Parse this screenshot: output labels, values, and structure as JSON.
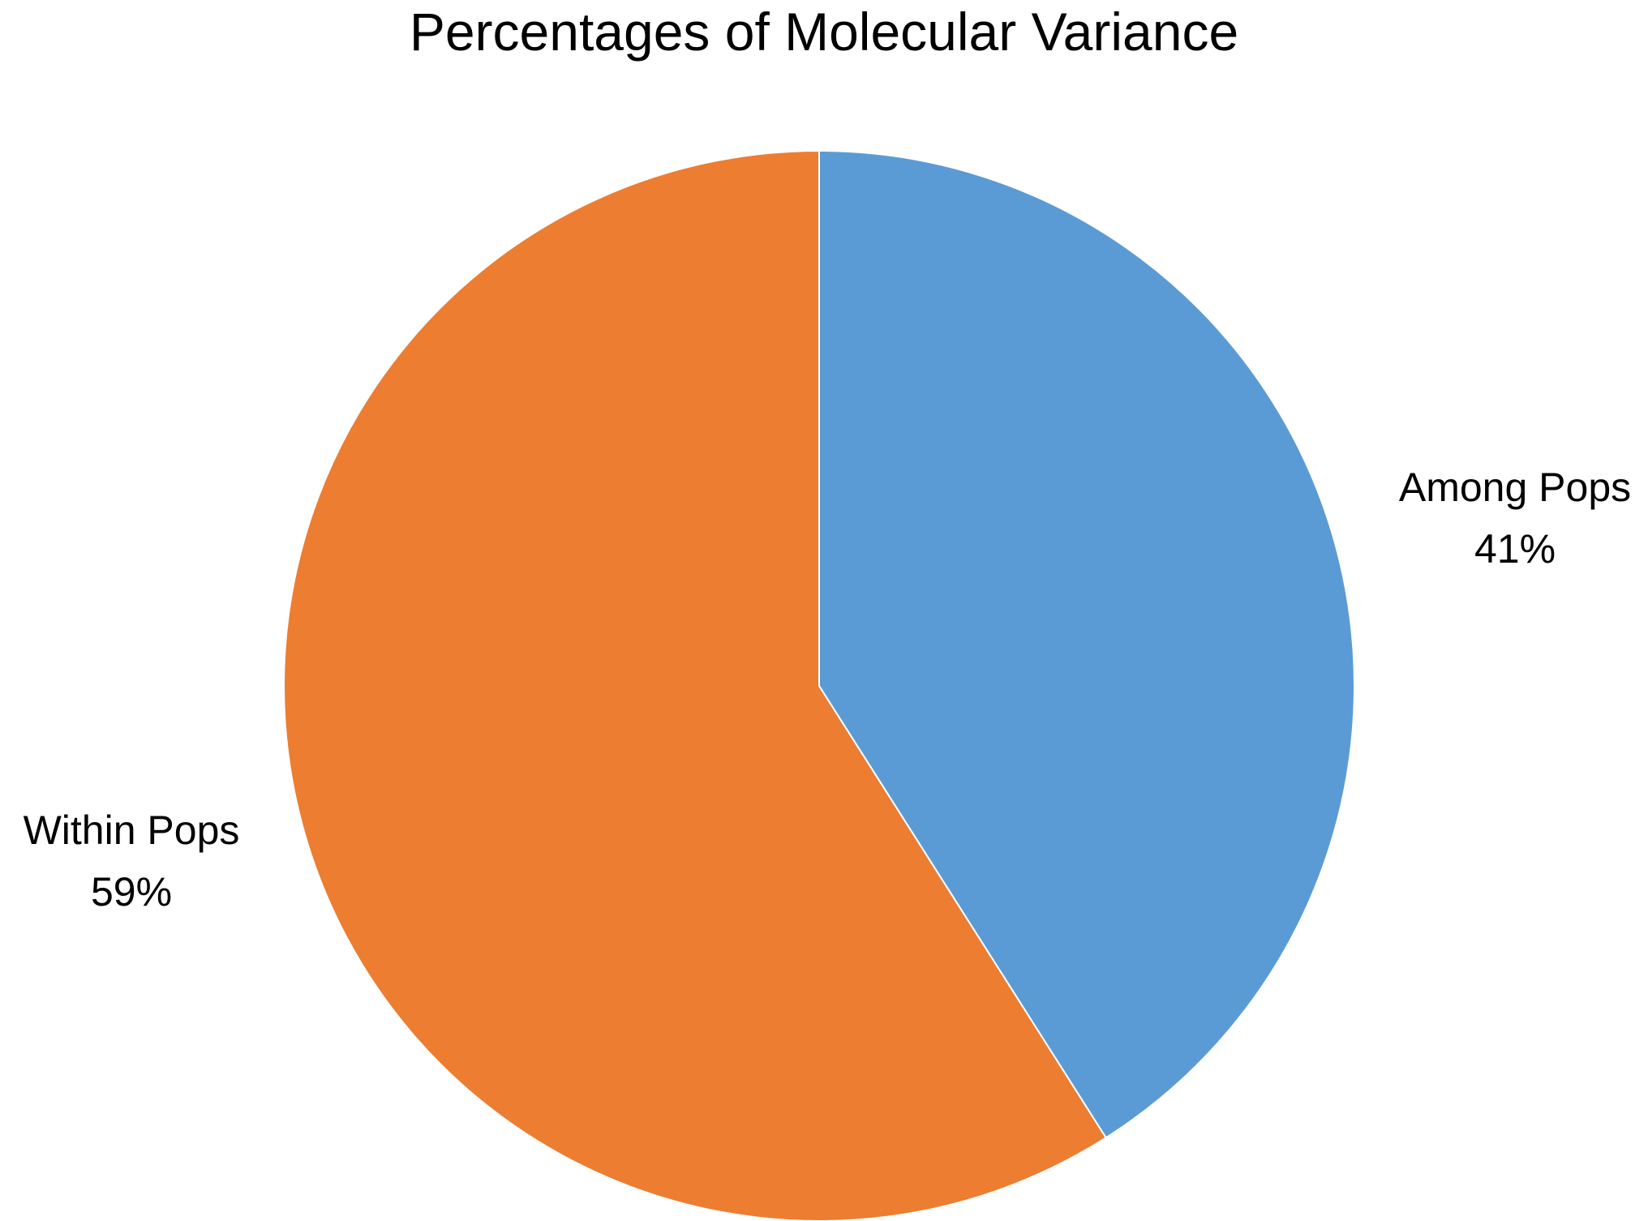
{
  "chart_data": {
    "type": "pie",
    "title": "Percentages of Molecular Variance",
    "slices": [
      {
        "label": "Among Pops",
        "percent_label": "41%",
        "value": 41,
        "color": "#5B9BD5"
      },
      {
        "label": "Within Pops",
        "percent_label": "59%",
        "value": 59,
        "color": "#ED7D31"
      }
    ],
    "start_angle": "12 o'clock",
    "direction": "clockwise",
    "legend": "none"
  }
}
